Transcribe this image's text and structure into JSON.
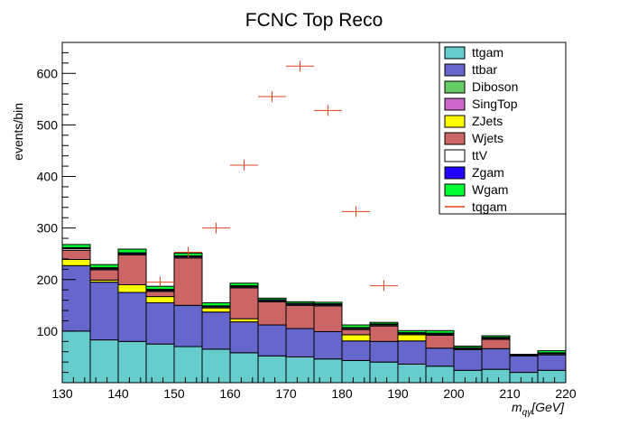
{
  "chart_data": {
    "type": "stacked_histogram",
    "title": "FCNC Top Reco",
    "xlabel_main": "m",
    "xlabel_sub": "qγ",
    "xlabel_unit": "[GeV]",
    "ylabel": "events/bin",
    "xlim": [
      130,
      220
    ],
    "ylim": [
      0,
      660
    ],
    "xticks": [
      130,
      140,
      150,
      160,
      170,
      180,
      190,
      200,
      210,
      220
    ],
    "yticks": [
      100,
      200,
      300,
      400,
      500,
      600
    ],
    "bin_edges": [
      130,
      135,
      140,
      145,
      150,
      155,
      160,
      165,
      170,
      175,
      180,
      185,
      190,
      195,
      200,
      205,
      210,
      215,
      220
    ],
    "legend_position": "top-right",
    "series": [
      {
        "name": "ttgam",
        "color": "#66cccc",
        "values": [
          100,
          83,
          80,
          75,
          70,
          65,
          58,
          52,
          50,
          46,
          43,
          40,
          36,
          32,
          24,
          26,
          20,
          24
        ]
      },
      {
        "name": "ttbar",
        "color": "#6666cc",
        "values": [
          127,
          112,
          95,
          80,
          80,
          72,
          60,
          60,
          55,
          53,
          38,
          40,
          45,
          35,
          40,
          40,
          32,
          30
        ]
      },
      {
        "name": "Diboson",
        "color": "#66cc66",
        "values": [
          0,
          0,
          0,
          0,
          0,
          0,
          0,
          0,
          0,
          0,
          0,
          0,
          0,
          0,
          0,
          0,
          0,
          0
        ]
      },
      {
        "name": "SingTop",
        "color": "#cc66cc",
        "values": [
          0,
          0,
          0,
          0,
          0,
          0,
          0,
          0,
          0,
          0,
          0,
          0,
          0,
          0,
          0,
          0,
          0,
          0
        ]
      },
      {
        "name": "ZJets",
        "color": "#ffff00",
        "values": [
          12,
          4,
          15,
          12,
          0,
          8,
          6,
          0,
          0,
          0,
          12,
          0,
          12,
          0,
          0,
          0,
          0,
          0
        ]
      },
      {
        "name": "Wjets",
        "color": "#cc6666",
        "values": [
          18,
          20,
          58,
          10,
          92,
          0,
          60,
          45,
          45,
          50,
          10,
          30,
          0,
          25,
          0,
          18,
          0,
          0
        ]
      },
      {
        "name": "ttV",
        "color": "#ffffff",
        "values": [
          3,
          2,
          2,
          2,
          2,
          2,
          2,
          2,
          2,
          2,
          2,
          2,
          2,
          2,
          2,
          2,
          1,
          2
        ]
      },
      {
        "name": "Zgam",
        "color": "#2200ff",
        "values": [
          2,
          2,
          2,
          2,
          2,
          2,
          2,
          2,
          2,
          2,
          2,
          2,
          2,
          2,
          2,
          2,
          1,
          2
        ]
      },
      {
        "name": "Wgam",
        "color": "#00ff33",
        "values": [
          6,
          6,
          7,
          6,
          5,
          6,
          5,
          3,
          3,
          3,
          5,
          3,
          4,
          5,
          3,
          3,
          1,
          4
        ]
      }
    ],
    "signal": {
      "name": "tqgam",
      "color": "#dd4422",
      "x": [
        147.5,
        152.5,
        157.5,
        162.5,
        167.5,
        172.5,
        177.5,
        182.5,
        187.5
      ],
      "y": [
        195,
        253,
        300,
        422,
        555,
        614,
        528,
        332,
        188
      ]
    }
  }
}
